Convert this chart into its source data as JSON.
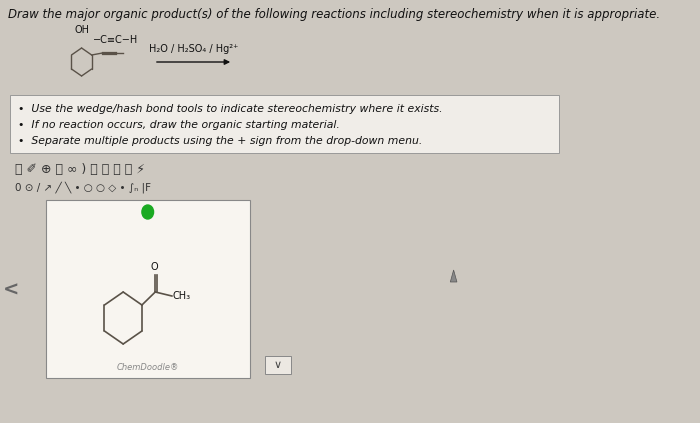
{
  "title": "Draw the major organic product(s) of the following reactions including stereochemistry when it is appropriate.",
  "title_fontsize": 8.5,
  "bg_color": "#cdc8c0",
  "white_box_bg": "#f0ede8",
  "reagent_text": "H₂O / H₂SO₄ / Hg²⁺",
  "bullets": [
    "Use the wedge/hash bond tools to indicate stereochemistry where it exists.",
    "If no reaction occurs, draw the organic starting material.",
    "Separate multiple products using the + sign from the drop-down menu."
  ],
  "chemdoodle_label": "ChemDoodle®",
  "bond_color": "#5a5248",
  "text_color": "#111111",
  "light_text": "#666666",
  "arrow_color": "#111111"
}
